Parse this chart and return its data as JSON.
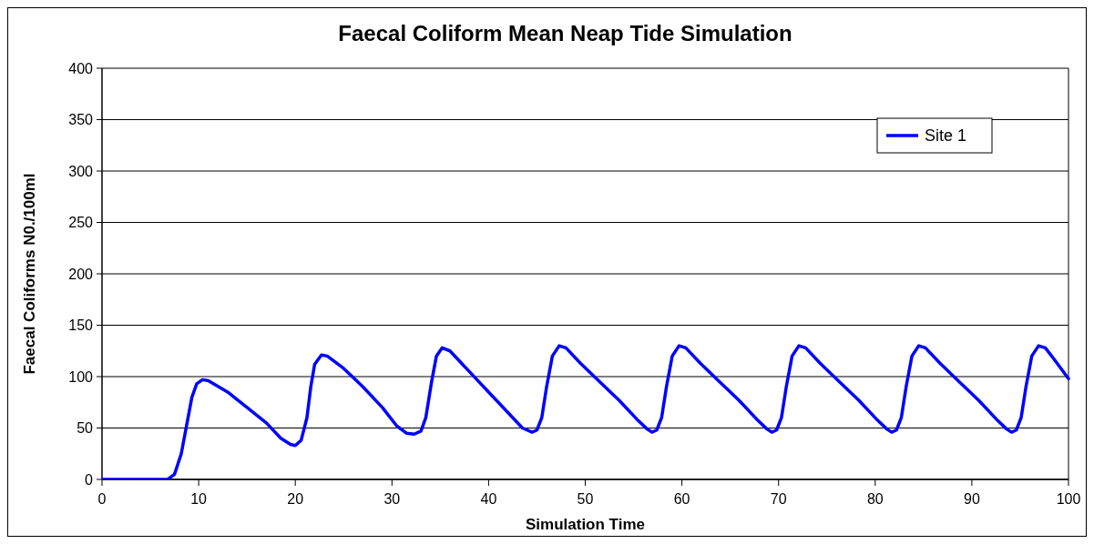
{
  "chart_data": {
    "type": "line",
    "title": "Faecal Coliform Mean Neap Tide Simulation",
    "xlabel": "Simulation Time",
    "ylabel": "Faecal Coliforms N0./100ml",
    "xlim": [
      0,
      100
    ],
    "xticks": [
      0,
      10,
      20,
      30,
      40,
      50,
      60,
      70,
      80,
      90,
      100
    ],
    "ylim": [
      0,
      400
    ],
    "yticks": [
      0,
      50,
      100,
      150,
      200,
      250,
      300,
      350,
      400
    ],
    "grid": "y",
    "legend": "top right",
    "marker": "none",
    "line_style": "solid",
    "series": [
      {
        "name": "Site 1",
        "color": "#0000ff",
        "x": [
          0,
          6.8,
          7.5,
          8.2,
          8.8,
          9.3,
          9.8,
          10.4,
          11,
          13,
          15,
          17,
          18.5,
          19.5,
          20,
          20.6,
          21.2,
          21.6,
          22,
          22.7,
          23.3,
          25,
          27,
          29,
          30.5,
          31.5,
          32.3,
          33,
          33.5,
          34.1,
          34.6,
          35.2,
          36,
          38,
          40,
          42,
          43.5,
          44.5,
          45,
          45.5,
          46,
          46.6,
          47.3,
          48,
          49.5,
          51.5,
          53.5,
          55.5,
          56.4,
          56.9,
          57.4,
          57.9,
          58.4,
          59,
          59.7,
          60.4,
          61.9,
          63.9,
          65.9,
          67.9,
          68.8,
          69.3,
          69.8,
          70.3,
          70.8,
          71.4,
          72.1,
          72.8,
          74.3,
          76.3,
          78.3,
          80.3,
          81.2,
          81.7,
          82.2,
          82.7,
          83.2,
          83.8,
          84.5,
          85.2,
          86.7,
          88.7,
          90.7,
          92.7,
          93.6,
          94.1,
          94.6,
          95.1,
          95.6,
          96.2,
          96.9,
          97.6,
          98.5,
          100
        ],
        "values": [
          0,
          0,
          5,
          25,
          55,
          80,
          93,
          97,
          96,
          85,
          70,
          55,
          40,
          34,
          33,
          38,
          60,
          90,
          112,
          121,
          120,
          108,
          90,
          70,
          52,
          45,
          44,
          47,
          60,
          95,
          120,
          128,
          125,
          105,
          85,
          65,
          50,
          46,
          48,
          60,
          90,
          120,
          130,
          128,
          113,
          95,
          77,
          57,
          49,
          46,
          48,
          60,
          90,
          120,
          130,
          128,
          113,
          95,
          77,
          57,
          49,
          46,
          48,
          60,
          90,
          120,
          130,
          128,
          113,
          95,
          77,
          57,
          49,
          46,
          48,
          60,
          90,
          120,
          130,
          128,
          113,
          95,
          77,
          57,
          49,
          46,
          48,
          60,
          90,
          120,
          130,
          128,
          117,
          98
        ]
      }
    ]
  }
}
